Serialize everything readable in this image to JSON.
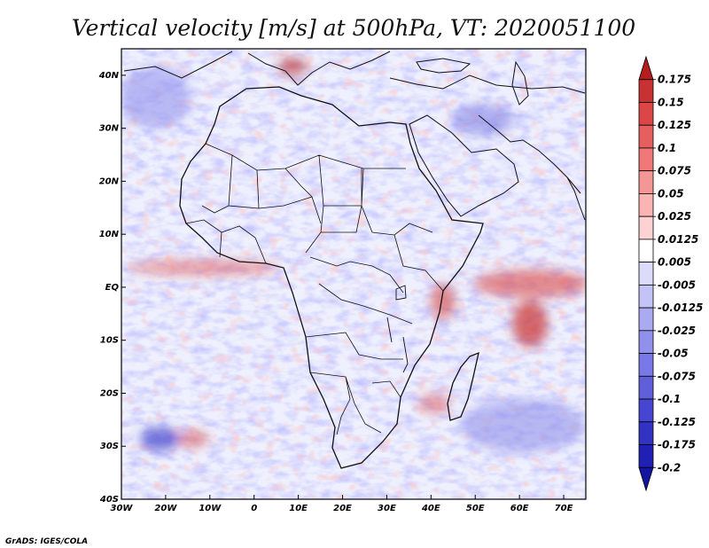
{
  "title": "Vertical velocity [m/s] at 500hPa, VT: 2020051100",
  "credit": "GrADS: IGES/COLA",
  "map": {
    "lon_range": [
      -30,
      75
    ],
    "lat_range": [
      -40,
      45
    ],
    "x_ticks": [
      "30W",
      "20W",
      "10W",
      "0",
      "10E",
      "20E",
      "30E",
      "40E",
      "50E",
      "60E",
      "70E"
    ],
    "y_ticks": [
      "40S",
      "30S",
      "20S",
      "10S",
      "EQ",
      "10N",
      "20N",
      "30N",
      "40N"
    ],
    "features": [
      "coastlines",
      "country-borders",
      "lakes"
    ]
  },
  "colorbar": {
    "levels": [
      "0.175",
      "0.15",
      "0.125",
      "0.1",
      "0.075",
      "0.05",
      "0.025",
      "0.0125",
      "0.005",
      "-0.005",
      "-0.0125",
      "-0.025",
      "-0.05",
      "-0.075",
      "-0.1",
      "-0.125",
      "-0.175",
      "-0.2"
    ],
    "colors": [
      "#b41e1e",
      "#c83232",
      "#dc4646",
      "#e65f5f",
      "#f07878",
      "#f59696",
      "#fab4b4",
      "#fcd2d2",
      "#ffffff",
      "#dcdcfa",
      "#c3c3f5",
      "#aaaaf0",
      "#9191eb",
      "#7878e6",
      "#5f5fdc",
      "#4646d2",
      "#3232c3",
      "#2020b4",
      "#1414a0"
    ]
  }
}
